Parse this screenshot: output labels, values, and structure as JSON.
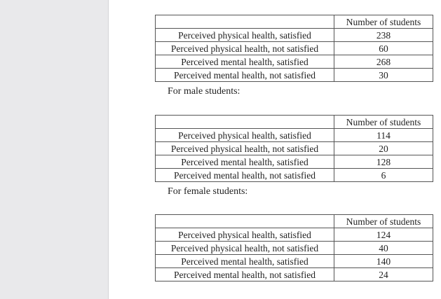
{
  "tables": [
    {
      "header": "Number of students",
      "rows": [
        {
          "label": "Perceived physical health, satisfied",
          "value": "238"
        },
        {
          "label": "Perceived physical health, not satisfied",
          "value": "60"
        },
        {
          "label": "Perceived mental health, satisfied",
          "value": "268"
        },
        {
          "label": "Perceived mental health, not satisfied",
          "value": "30"
        }
      ]
    },
    {
      "caption": "For male students:",
      "header": "Number of students",
      "rows": [
        {
          "label": "Perceived physical health, satisfied",
          "value": "114"
        },
        {
          "label": "Perceived physical health, not satisfied",
          "value": "20"
        },
        {
          "label": "Perceived mental health, satisfied",
          "value": "128"
        },
        {
          "label": "Perceived mental health, not satisfied",
          "value": "6"
        }
      ]
    },
    {
      "caption": "For female students:",
      "header": "Number of students",
      "rows": [
        {
          "label": "Perceived physical health, satisfied",
          "value": "124"
        },
        {
          "label": "Perceived physical health, not satisfied",
          "value": "40"
        },
        {
          "label": "Perceived mental health, satisfied",
          "value": "140"
        },
        {
          "label": "Perceived mental health, not satisfied",
          "value": "24"
        }
      ]
    }
  ]
}
